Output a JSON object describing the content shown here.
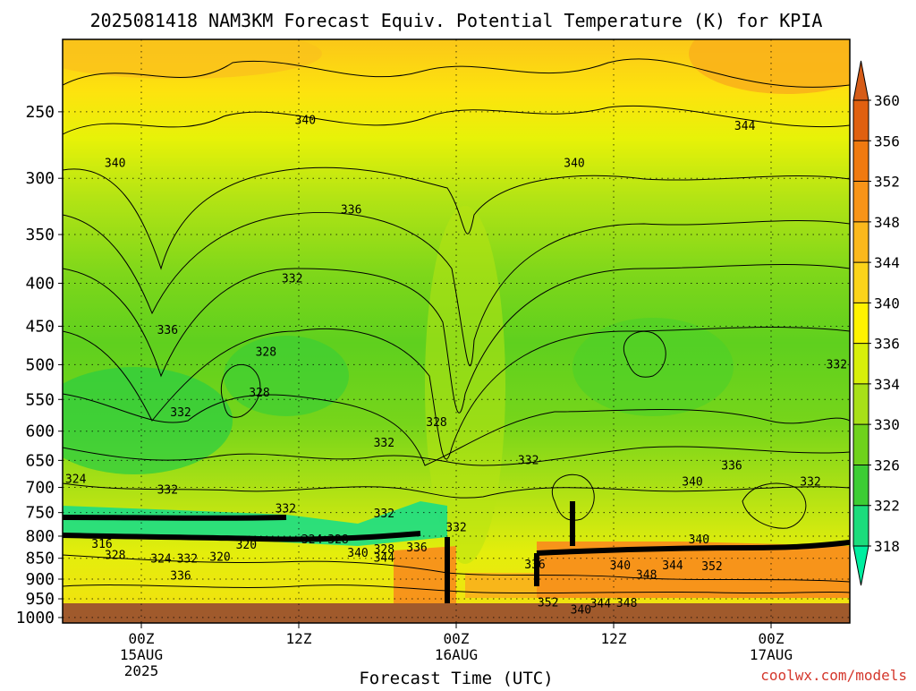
{
  "chart_data": {
    "type": "heatmap",
    "title": "2025081418 NAM3KM Forecast Equiv. Potential Temperature (K) for KPIA",
    "xlabel": "Forecast Time (UTC)",
    "ylabel": "",
    "credit": "coolwx.com/models",
    "y_axis": {
      "scale": "log-pressure",
      "direction": "pressure decreases upward",
      "range_hPa": [
        1015,
        205
      ],
      "ticks": [
        250,
        300,
        350,
        400,
        450,
        500,
        550,
        600,
        650,
        700,
        750,
        800,
        850,
        900,
        950,
        1000
      ],
      "grid": "dotted"
    },
    "x_axis": {
      "range_hours_from_start": [
        0,
        60
      ],
      "ticks": [
        {
          "hour": 6,
          "lines": [
            "00Z",
            "15AUG",
            "2025"
          ]
        },
        {
          "hour": 18,
          "lines": [
            "12Z"
          ]
        },
        {
          "hour": 30,
          "lines": [
            "00Z",
            "16AUG"
          ]
        },
        {
          "hour": 42,
          "lines": [
            "12Z"
          ]
        },
        {
          "hour": 54,
          "lines": [
            "00Z",
            "17AUG"
          ]
        }
      ],
      "grid": "dotted"
    },
    "colorbar": {
      "labels": [
        "360",
        "356",
        "352",
        "348",
        "344",
        "340",
        "336",
        "334",
        "330",
        "326",
        "322",
        "318"
      ],
      "colors": [
        "#e06010",
        "#f07a10",
        "#f89418",
        "#fbb81c",
        "#fbd31a",
        "#fff200",
        "#d8ef0a",
        "#a8e018",
        "#6fd21c",
        "#3ccd34",
        "#1cdc7c",
        "#00eea0"
      ],
      "top_triangle_color": "#d65c18",
      "bottom_triangle_color": "#00eea0",
      "placement": "right"
    },
    "ground_color": "#a05a2c",
    "contour_labels": [
      {
        "hour": 18.5,
        "p": 256,
        "value": "340"
      },
      {
        "hour": 4,
        "p": 288,
        "value": "340"
      },
      {
        "hour": 52,
        "p": 260,
        "value": "344"
      },
      {
        "hour": 39,
        "p": 288,
        "value": "340"
      },
      {
        "hour": 22,
        "p": 327,
        "value": "336"
      },
      {
        "hour": 17.5,
        "p": 395,
        "value": "332"
      },
      {
        "hour": 8,
        "p": 455,
        "value": "336"
      },
      {
        "hour": 15.5,
        "p": 483,
        "value": "328"
      },
      {
        "hour": 15,
        "p": 540,
        "value": "328"
      },
      {
        "hour": 9,
        "p": 570,
        "value": "332"
      },
      {
        "hour": 28.5,
        "p": 586,
        "value": "328"
      },
      {
        "hour": 24.5,
        "p": 620,
        "value": "332"
      },
      {
        "hour": 35.5,
        "p": 650,
        "value": "332"
      },
      {
        "hour": 1,
        "p": 685,
        "value": "324"
      },
      {
        "hour": 8,
        "p": 705,
        "value": "332"
      },
      {
        "hour": 17,
        "p": 742,
        "value": "332"
      },
      {
        "hour": 24.5,
        "p": 752,
        "value": "332"
      },
      {
        "hour": 30,
        "p": 782,
        "value": "332"
      },
      {
        "hour": 27,
        "p": 826,
        "value": "336"
      },
      {
        "hour": 51,
        "p": 660,
        "value": "336"
      },
      {
        "hour": 57,
        "p": 690,
        "value": "332"
      },
      {
        "hour": 59,
        "p": 500,
        "value": "332"
      },
      {
        "hour": 48,
        "p": 690,
        "value": "340"
      },
      {
        "hour": 48.5,
        "p": 808,
        "value": "340"
      },
      {
        "hour": 3,
        "p": 818,
        "value": "316"
      },
      {
        "hour": 14,
        "p": 820,
        "value": "320"
      },
      {
        "hour": 19,
        "p": 808,
        "value": "324"
      },
      {
        "hour": 21,
        "p": 808,
        "value": "328"
      },
      {
        "hour": 4,
        "p": 843,
        "value": "328"
      },
      {
        "hour": 7.5,
        "p": 852,
        "value": "324"
      },
      {
        "hour": 9.5,
        "p": 852,
        "value": "332"
      },
      {
        "hour": 12,
        "p": 848,
        "value": "320"
      },
      {
        "hour": 9,
        "p": 892,
        "value": "336"
      },
      {
        "hour": 22.5,
        "p": 838,
        "value": "340"
      },
      {
        "hour": 24.5,
        "p": 830,
        "value": "328"
      },
      {
        "hour": 24.5,
        "p": 850,
        "value": "344"
      },
      {
        "hour": 36,
        "p": 865,
        "value": "336"
      },
      {
        "hour": 42.5,
        "p": 868,
        "value": "340"
      },
      {
        "hour": 44.5,
        "p": 890,
        "value": "348"
      },
      {
        "hour": 46.5,
        "p": 868,
        "value": "344"
      },
      {
        "hour": 49.5,
        "p": 870,
        "value": "352"
      },
      {
        "hour": 37,
        "p": 960,
        "value": "352"
      },
      {
        "hour": 39.5,
        "p": 980,
        "value": "340"
      },
      {
        "hour": 41,
        "p": 963,
        "value": "344"
      },
      {
        "hour": 43,
        "p": 962,
        "value": "348"
      }
    ]
  }
}
